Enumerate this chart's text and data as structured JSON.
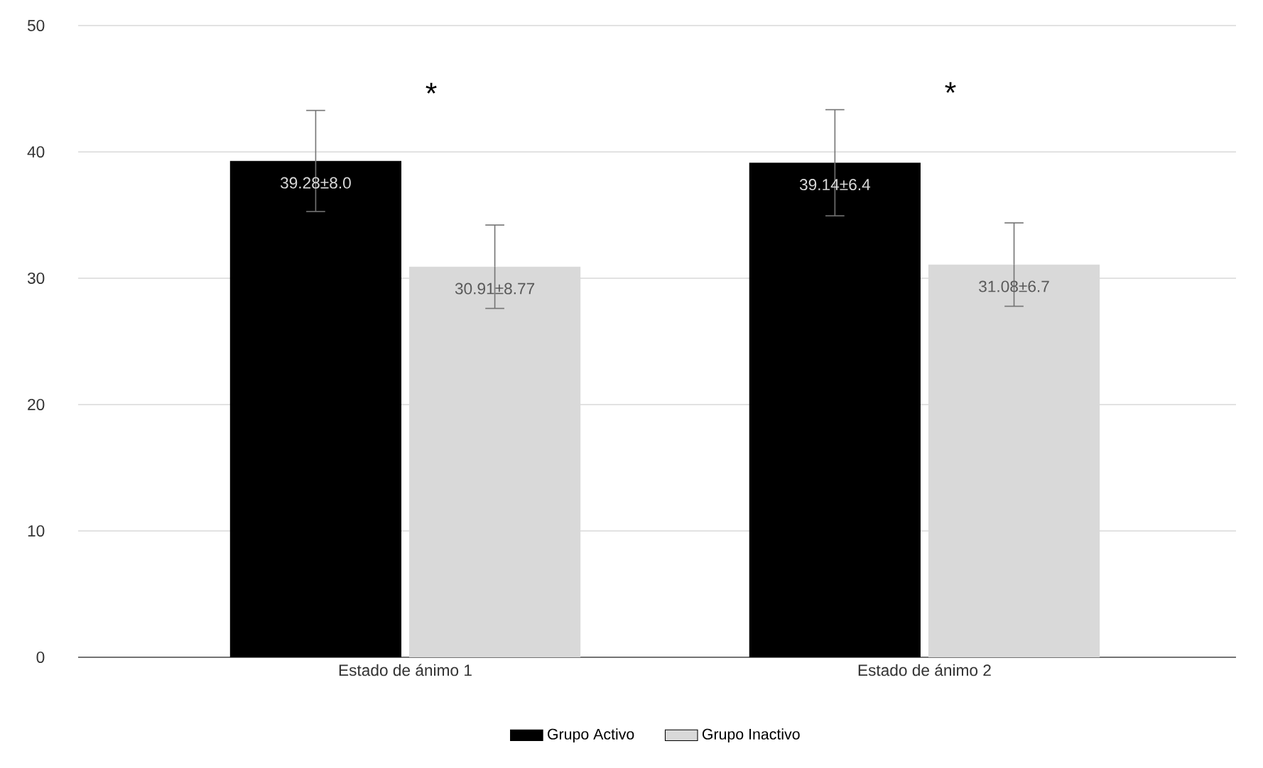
{
  "chart_data": {
    "type": "bar",
    "categories": [
      "Estado de ánimo 1",
      "Estado de ánimo 2"
    ],
    "series": [
      {
        "name": "Grupo Activo",
        "color": "#000000",
        "values": [
          39.28,
          39.14
        ],
        "errors": [
          4.0,
          4.2
        ],
        "value_labels": [
          "39.28±8.0",
          "39.14±6.4"
        ]
      },
      {
        "name": "Grupo Inactivo",
        "color": "#d9d9d9",
        "values": [
          30.91,
          31.08
        ],
        "errors": [
          3.3,
          3.3
        ],
        "value_labels": [
          "30.91±8.77",
          "31.08±6.7"
        ]
      }
    ],
    "ylim": [
      0,
      50
    ],
    "yticks": [
      0,
      10,
      20,
      30,
      40,
      50
    ],
    "grid": "y",
    "legend": "bottom",
    "annotations": [
      "*",
      "*"
    ]
  }
}
